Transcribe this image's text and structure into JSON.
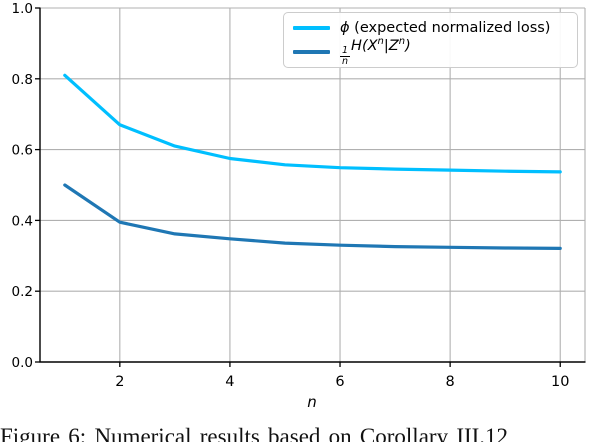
{
  "chart_data": {
    "type": "line",
    "x": [
      1,
      2,
      3,
      4,
      5,
      6,
      7,
      8,
      9,
      10
    ],
    "series": [
      {
        "name": "phi (expected normalized loss)",
        "color": "#00bfff",
        "values": [
          0.81,
          0.67,
          0.61,
          0.575,
          0.557,
          0.549,
          0.545,
          0.542,
          0.539,
          0.537
        ]
      },
      {
        "name": "(1/n)H(X^n|Z^n)",
        "color": "#1f77b4",
        "values": [
          0.5,
          0.395,
          0.362,
          0.348,
          0.336,
          0.33,
          0.326,
          0.324,
          0.322,
          0.321
        ]
      }
    ],
    "title": "",
    "xlabel": "n",
    "ylabel": "",
    "xticks": [
      "2",
      "4",
      "6",
      "8",
      "10"
    ],
    "yticks": [
      "0.0",
      "0.2",
      "0.4",
      "0.6",
      "0.8",
      "1.0"
    ],
    "xlim": [
      0.55,
      10.45
    ],
    "ylim": [
      0.0,
      1.0
    ],
    "grid": true,
    "legend_position": "upper right"
  },
  "legend": {
    "items": [
      {
        "symbol": "ϕ",
        "rest": " (expected normalized loss)",
        "color": "#00bfff"
      },
      {
        "num": "1",
        "den": "n",
        "f1": "H(X",
        "s1": "n",
        "f2": "|Z",
        "s2": "n",
        "f3": ")",
        "color": "#1f77b4"
      }
    ]
  },
  "caption": {
    "text": "Figure 6: Numerical results based on Corollary III.12"
  },
  "colors": {
    "grid": "#b0b0b0",
    "frame": "#b0b0b0",
    "spine": "#000000",
    "tick_label": "#000000",
    "background": "#ffffff"
  }
}
